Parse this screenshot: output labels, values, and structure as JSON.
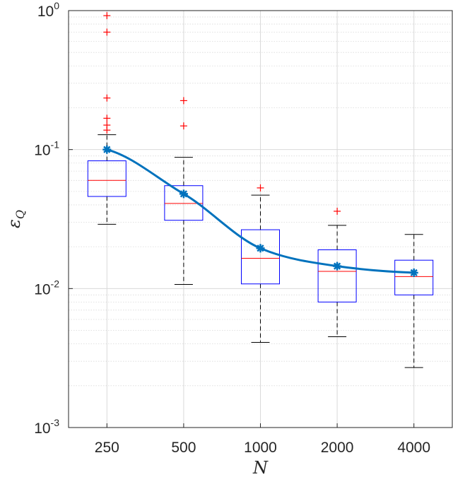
{
  "chart_data": {
    "type": "box",
    "xlabel": "N",
    "ylabel": "ε",
    "ylabel_sub": "Q",
    "yscale": "log",
    "ylim": [
      0.001,
      1
    ],
    "grid": true,
    "categories": [
      "250",
      "500",
      "1000",
      "2000",
      "4000"
    ],
    "y_ticks": [
      {
        "base": "10",
        "exp": "0"
      },
      {
        "base": "10",
        "exp": "-1"
      },
      {
        "base": "10",
        "exp": "-2"
      },
      {
        "base": "10",
        "exp": "-3"
      }
    ],
    "boxes": [
      {
        "category": "250",
        "whisker_low": 0.029,
        "q1": 0.046,
        "median": 0.06,
        "q3": 0.083,
        "whisker_high": 0.128,
        "outliers": [
          0.92,
          0.7,
          0.235,
          0.168,
          0.15,
          0.138
        ]
      },
      {
        "category": "500",
        "whisker_low": 0.0107,
        "q1": 0.031,
        "median": 0.041,
        "q3": 0.055,
        "whisker_high": 0.088,
        "outliers": [
          0.225,
          0.148
        ]
      },
      {
        "category": "1000",
        "whisker_low": 0.0041,
        "q1": 0.0108,
        "median": 0.0165,
        "q3": 0.0265,
        "whisker_high": 0.047,
        "outliers": [
          0.053
        ]
      },
      {
        "category": "2000",
        "whisker_low": 0.0045,
        "q1": 0.008,
        "median": 0.0133,
        "q3": 0.019,
        "whisker_high": 0.0285,
        "outliers": [
          0.036
        ]
      },
      {
        "category": "4000",
        "whisker_low": 0.0027,
        "q1": 0.009,
        "median": 0.0122,
        "q3": 0.016,
        "whisker_high": 0.0245,
        "outliers": []
      }
    ],
    "mean_series": {
      "values": [
        0.1,
        0.048,
        0.0195,
        0.0145,
        0.013
      ]
    },
    "colors": {
      "box": "#0000ff",
      "median": "#ff0000",
      "outlier": "#ff0000",
      "whisker": "#000000",
      "mean_line": "#0072bd",
      "grid": "#d9d9d9",
      "axis": "#262626"
    }
  }
}
